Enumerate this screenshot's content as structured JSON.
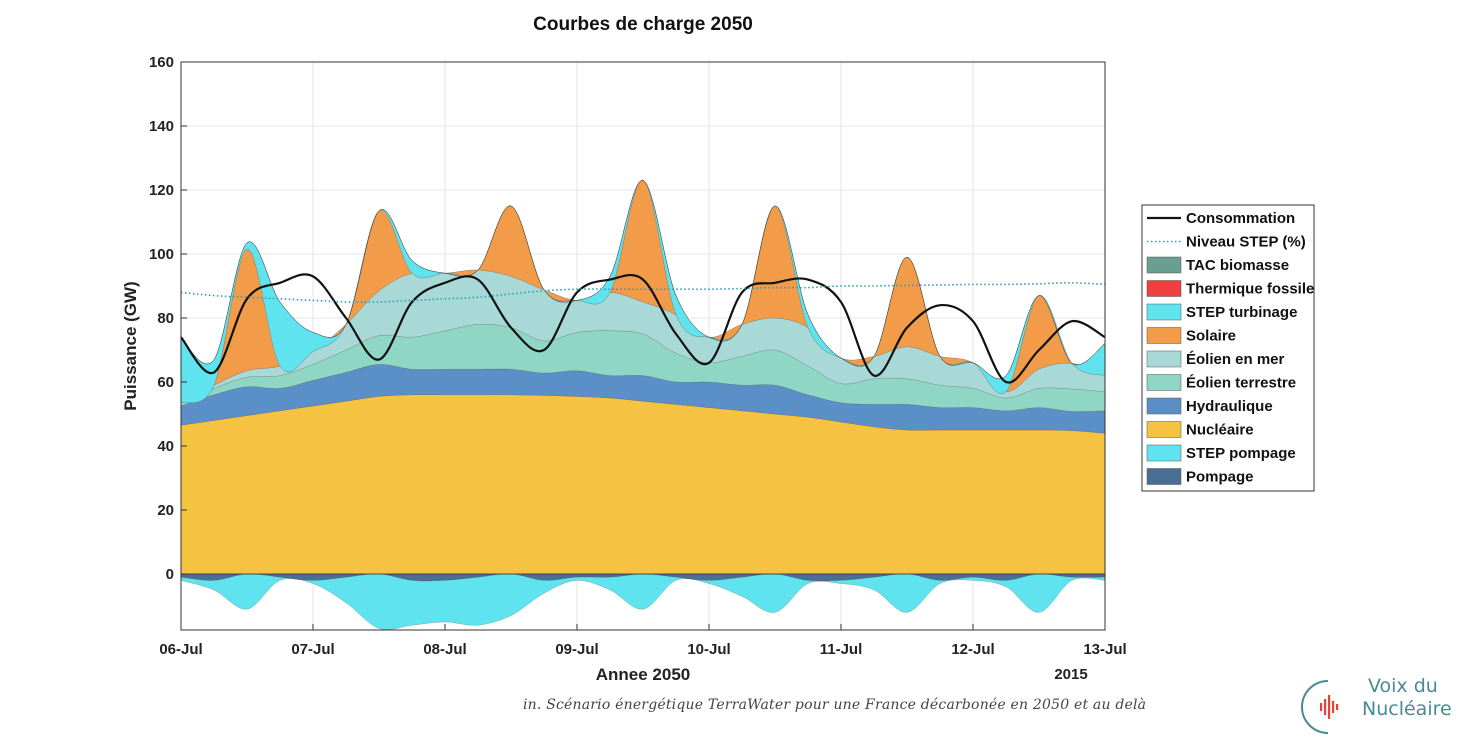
{
  "chart_data": {
    "type": "area",
    "title": "Courbes de charge 2050",
    "xlabel": "Annee 2050",
    "xlabel_secondary": "2015",
    "ylabel": "Puissance (GW)",
    "ylim": [
      -17.5,
      160
    ],
    "xlim": [
      0,
      7
    ],
    "yticks": [
      0,
      20,
      40,
      60,
      80,
      100,
      120,
      140,
      160
    ],
    "xticks": [
      "06-Jul",
      "07-Jul",
      "08-Jul",
      "09-Jul",
      "10-Jul",
      "11-Jul",
      "12-Jul",
      "13-Jul"
    ],
    "grid": true,
    "legend_position": "right",
    "x_unit": "days since 06-Jul 00:00",
    "x": [
      0,
      0.25,
      0.5,
      0.75,
      1,
      1.25,
      1.5,
      1.75,
      2,
      2.25,
      2.5,
      2.75,
      3,
      3.25,
      3.5,
      3.75,
      4,
      4.25,
      4.5,
      4.75,
      5,
      5.25,
      5.5,
      5.75,
      6,
      6.25,
      6.5,
      6.75,
      7
    ],
    "stack_order_positive": [
      "Nucléaire",
      "Hydraulique",
      "Éolien terrestre",
      "Éolien en mer",
      "Solaire",
      "STEP turbinage",
      "Thermique fossile",
      "TAC biomasse"
    ],
    "series": [
      {
        "name": "Nucléaire",
        "color": "#f5c242",
        "values": [
          46.5,
          48,
          49.5,
          51,
          52.5,
          54,
          55.5,
          56,
          56,
          56,
          56,
          55.8,
          55.5,
          55,
          54,
          53,
          52,
          51,
          50,
          49,
          47.5,
          46,
          45,
          45,
          45,
          45,
          45,
          44.8,
          44
        ]
      },
      {
        "name": "Hydraulique",
        "color": "#5b8fc7",
        "values": [
          6,
          8,
          9,
          7,
          8,
          9,
          10,
          8,
          8,
          8,
          8,
          7,
          8,
          7,
          8,
          7,
          8,
          8,
          9,
          7,
          6,
          7,
          8,
          7,
          7,
          6,
          7,
          6,
          7
        ]
      },
      {
        "name": "Éolien terrestre",
        "color": "#8fd6c5",
        "values": [
          1,
          2,
          3,
          4,
          5,
          7,
          9,
          10,
          12,
          14,
          13,
          10,
          12,
          14,
          13,
          9,
          6,
          9,
          11,
          9,
          6,
          8,
          8,
          7,
          6,
          4,
          6,
          7,
          6
        ]
      },
      {
        "name": "Éolien en mer",
        "color": "#a8d9d6",
        "values": [
          0,
          1,
          2,
          3,
          4,
          8,
          14,
          20,
          18,
          17,
          16,
          16,
          10,
          12,
          10,
          12,
          8,
          10,
          10,
          12,
          8,
          7,
          10,
          9,
          8,
          2,
          6,
          8,
          5
        ]
      },
      {
        "name": "Solaire",
        "color": "#f29b48",
        "values": [
          0,
          0,
          38,
          0,
          0,
          0,
          25,
          0,
          0,
          0,
          22,
          0,
          0,
          0,
          38,
          0,
          0,
          0,
          35,
          0,
          0,
          0,
          28,
          0,
          0,
          0,
          23,
          0,
          0
        ]
      },
      {
        "name": "STEP turbinage",
        "color": "#5fe3ee",
        "values": [
          20,
          8,
          2,
          20,
          6,
          0,
          0,
          4,
          0,
          0,
          0,
          0,
          0,
          5,
          0,
          6,
          0,
          0,
          0,
          4,
          0,
          0,
          0,
          0,
          0,
          5,
          0,
          0,
          10
        ]
      },
      {
        "name": "Thermique fossile",
        "color": "#ee4040",
        "values": [
          0,
          0,
          0,
          0,
          0,
          0,
          0,
          0,
          0,
          0,
          0,
          0,
          0,
          0,
          0,
          0,
          0,
          0,
          0,
          0,
          0,
          0,
          0,
          0,
          0,
          0,
          0,
          0,
          0
        ]
      },
      {
        "name": "TAC biomasse",
        "color": "#6a9e90",
        "values": [
          0,
          0,
          0,
          0,
          0,
          0,
          0,
          0,
          0,
          0,
          0,
          0,
          0,
          0,
          0,
          0,
          0,
          0,
          0,
          0,
          0,
          0,
          0,
          0,
          0,
          0,
          0,
          0,
          0
        ]
      },
      {
        "name": "STEP pompage",
        "color": "#5fe3ee",
        "values": [
          -1,
          -3,
          -11,
          -1,
          -1,
          -8,
          -17,
          -14,
          -13,
          -15,
          -13,
          -4,
          -1,
          -4,
          -11,
          -1,
          -1,
          -6,
          -12,
          -1,
          -1,
          -4,
          -12,
          -1,
          -1,
          -2,
          -12,
          -1,
          -1
        ]
      },
      {
        "name": "Pompage",
        "color": "#4a6f94",
        "values": [
          -1,
          -2,
          0,
          -1,
          -2,
          -1,
          0,
          -2,
          -2,
          -1,
          0,
          -2,
          -1,
          -1,
          0,
          -1,
          -2,
          -1,
          0,
          -2,
          -2,
          -1,
          0,
          -2,
          -1,
          -2,
          0,
          -1,
          -1
        ]
      }
    ],
    "lines": [
      {
        "name": "Consommation",
        "color": "#111111",
        "style": "solid",
        "values": [
          74,
          63,
          86,
          91,
          93,
          80,
          67,
          85,
          91,
          92,
          77,
          70,
          88,
          92,
          92,
          75,
          66,
          88,
          91,
          92,
          85,
          62,
          77,
          84,
          79,
          60,
          70,
          79,
          74
        ]
      },
      {
        "name": "Niveau STEP (%)",
        "color": "#2a9fb4",
        "style": "dotted",
        "values": [
          88,
          87,
          86.5,
          86,
          85.5,
          85,
          85,
          85.5,
          86,
          86.5,
          87.5,
          88.5,
          89,
          89,
          89,
          89,
          89,
          89.2,
          89.5,
          89.5,
          90,
          90,
          90.2,
          90.3,
          90.5,
          90.5,
          90.7,
          91,
          90.5
        ]
      }
    ],
    "legend": [
      {
        "label": "Consommation",
        "kind": "line",
        "color": "#111111"
      },
      {
        "label": "Niveau STEP (%)",
        "kind": "dotted",
        "color": "#2a9fb4"
      },
      {
        "label": "TAC biomasse",
        "kind": "patch",
        "color": "#6a9e90"
      },
      {
        "label": "Thermique fossile",
        "kind": "patch",
        "color": "#ee4040"
      },
      {
        "label": "STEP turbinage",
        "kind": "patch",
        "color": "#5fe3ee"
      },
      {
        "label": "Solaire",
        "kind": "patch",
        "color": "#f29b48"
      },
      {
        "label": "Éolien en mer",
        "kind": "patch",
        "color": "#a8d9d6"
      },
      {
        "label": "Éolien terrestre",
        "kind": "patch",
        "color": "#8fd6c5"
      },
      {
        "label": "Hydraulique",
        "kind": "patch",
        "color": "#5b8fc7"
      },
      {
        "label": "Nucléaire",
        "kind": "patch",
        "color": "#f5c242"
      },
      {
        "label": "STEP pompage",
        "kind": "patch",
        "color": "#5fe3ee"
      },
      {
        "label": "Pompage",
        "kind": "patch",
        "color": "#4a6f94"
      }
    ]
  },
  "footer": {
    "credit": "in. Scénario énergétique TerraWater pour une France décarbonée en 2050 et au delà",
    "logo_line1": "Voix du",
    "logo_line2": "Nucléaire",
    "logo_color": "#4a8a94",
    "logo_accent": "#e0453a"
  }
}
